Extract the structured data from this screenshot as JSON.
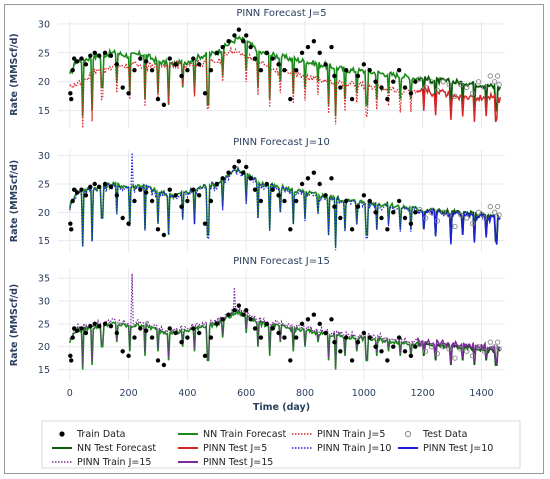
{
  "chart_data": [
    {
      "type": "line",
      "title": "PINN Forecast J=5",
      "ylabel": "Rate (MMScf/d)",
      "xlim": [
        -40,
        1480
      ],
      "ylim": [
        12,
        30.5
      ],
      "yticks": [
        15,
        20,
        25,
        30
      ],
      "grid": true,
      "pinn_train_name": "PINN Train J=5",
      "pinn_test_name": "PINN Test J=5",
      "pinn_color": "#d62728",
      "pinn_baseline": [
        [
          0,
          19
        ],
        [
          100,
          22
        ],
        [
          200,
          23
        ],
        [
          300,
          22.5
        ],
        [
          400,
          23
        ],
        [
          500,
          23.5
        ],
        [
          560,
          25.5
        ],
        [
          600,
          24.5
        ],
        [
          700,
          22
        ],
        [
          800,
          21
        ],
        [
          900,
          20
        ],
        [
          1000,
          19.5
        ],
        [
          1100,
          18.5
        ],
        [
          1200,
          18.5
        ],
        [
          1300,
          17.5
        ],
        [
          1400,
          17.5
        ],
        [
          1460,
          17
        ]
      ],
      "pinn_offset_from_nn": -2.5
    },
    {
      "type": "line",
      "title": "PINN Forecast J=10",
      "ylabel": "Rate (MMScf/d)",
      "xlim": [
        -40,
        1480
      ],
      "ylim": [
        13,
        31
      ],
      "yticks": [
        15,
        20,
        25,
        30
      ],
      "grid": true,
      "pinn_train_name": "PINN Train J=10",
      "pinn_test_name": "PINN Test J=10",
      "pinn_color": "#1f1fd6",
      "pinn_offset_from_nn": -0.3
    },
    {
      "type": "line",
      "title": "PINN Forecast J=15",
      "ylabel": "Rate (MMScf/d)",
      "xlabel": "Time (day)",
      "xlim": [
        -40,
        1480
      ],
      "ylim": [
        12.5,
        37
      ],
      "yticks": [
        15,
        20,
        25,
        30,
        35
      ],
      "xticks": [
        0,
        200,
        400,
        600,
        800,
        1000,
        1200,
        1400
      ],
      "grid": true,
      "pinn_train_name": "PINN Train J=15",
      "pinn_test_name": "PINN Test J=15",
      "pinn_color": "#7a2a9a",
      "pinn_offset_from_nn": 0.6
    }
  ],
  "shared_series": {
    "nn_baseline": [
      [
        0,
        21
      ],
      [
        20,
        23.5
      ],
      [
        60,
        24
      ],
      [
        100,
        24.5
      ],
      [
        150,
        25
      ],
      [
        200,
        24.5
      ],
      [
        250,
        24.8
      ],
      [
        300,
        23.5
      ],
      [
        350,
        23
      ],
      [
        400,
        23.5
      ],
      [
        450,
        24.5
      ],
      [
        500,
        25
      ],
      [
        540,
        26.5
      ],
      [
        570,
        27.5
      ],
      [
        600,
        27
      ],
      [
        650,
        25
      ],
      [
        700,
        24.5
      ],
      [
        750,
        24
      ],
      [
        800,
        23.5
      ],
      [
        850,
        23
      ],
      [
        900,
        22.5
      ],
      [
        950,
        22
      ],
      [
        1000,
        21.8
      ],
      [
        1050,
        21.5
      ],
      [
        1100,
        21.2
      ],
      [
        1150,
        20.8
      ],
      [
        1200,
        20.5
      ],
      [
        1250,
        20.2
      ],
      [
        1300,
        20
      ],
      [
        1350,
        19.8
      ],
      [
        1400,
        19.5
      ],
      [
        1460,
        19
      ]
    ],
    "train_end_day": 1180,
    "end_day": 1465,
    "train_points": [
      [
        2,
        18
      ],
      [
        5,
        17
      ],
      [
        10,
        22
      ],
      [
        15,
        24
      ],
      [
        25,
        23.5
      ],
      [
        40,
        24
      ],
      [
        55,
        23
      ],
      [
        70,
        24.5
      ],
      [
        85,
        25
      ],
      [
        100,
        24.5
      ],
      [
        120,
        25
      ],
      [
        140,
        24.5
      ],
      [
        160,
        23
      ],
      [
        180,
        19
      ],
      [
        200,
        18
      ],
      [
        220,
        22
      ],
      [
        240,
        24
      ],
      [
        260,
        23.5
      ],
      [
        280,
        22
      ],
      [
        300,
        17
      ],
      [
        320,
        16
      ],
      [
        340,
        24
      ],
      [
        360,
        23
      ],
      [
        380,
        21
      ],
      [
        400,
        22
      ],
      [
        420,
        24
      ],
      [
        440,
        23
      ],
      [
        460,
        18
      ],
      [
        480,
        22
      ],
      [
        500,
        25
      ],
      [
        520,
        26
      ],
      [
        540,
        27
      ],
      [
        560,
        28
      ],
      [
        575,
        29
      ],
      [
        590,
        27
      ],
      [
        600,
        28
      ],
      [
        615,
        26
      ],
      [
        630,
        24
      ],
      [
        650,
        22
      ],
      [
        670,
        25
      ],
      [
        690,
        24
      ],
      [
        710,
        23
      ],
      [
        730,
        22
      ],
      [
        750,
        17
      ],
      [
        770,
        22
      ],
      [
        790,
        25
      ],
      [
        810,
        26
      ],
      [
        830,
        27
      ],
      [
        850,
        25
      ],
      [
        870,
        23
      ],
      [
        890,
        26
      ],
      [
        900,
        21
      ],
      [
        920,
        19
      ],
      [
        940,
        22
      ],
      [
        960,
        17
      ],
      [
        980,
        21
      ],
      [
        1000,
        23
      ],
      [
        1020,
        22
      ],
      [
        1040,
        20
      ],
      [
        1060,
        19
      ],
      [
        1080,
        17
      ],
      [
        1100,
        20
      ],
      [
        1120,
        22
      ],
      [
        1140,
        19
      ],
      [
        1160,
        18
      ],
      [
        1175,
        20
      ]
    ],
    "test_points": [
      [
        1190,
        20.5
      ],
      [
        1210,
        19
      ],
      [
        1230,
        20
      ],
      [
        1250,
        18.5
      ],
      [
        1270,
        20
      ],
      [
        1290,
        19.5
      ],
      [
        1310,
        17.5
      ],
      [
        1330,
        19.5
      ],
      [
        1350,
        19
      ],
      [
        1370,
        18
      ],
      [
        1390,
        20
      ],
      [
        1410,
        19
      ],
      [
        1430,
        21
      ],
      [
        1445,
        20
      ],
      [
        1455,
        21
      ],
      [
        1460,
        19.5
      ]
    ],
    "drops": [
      [
        45,
        14
      ],
      [
        75,
        15
      ],
      [
        110,
        19
      ],
      [
        160,
        20
      ],
      [
        205,
        18
      ],
      [
        255,
        17
      ],
      [
        300,
        18
      ],
      [
        335,
        16
      ],
      [
        385,
        19
      ],
      [
        425,
        18
      ],
      [
        470,
        16
      ],
      [
        520,
        21
      ],
      [
        600,
        22
      ],
      [
        640,
        19
      ],
      [
        680,
        17
      ],
      [
        715,
        20
      ],
      [
        760,
        18
      ],
      [
        800,
        19
      ],
      [
        845,
        20
      ],
      [
        880,
        16
      ],
      [
        905,
        14
      ],
      [
        935,
        17
      ],
      [
        975,
        18
      ],
      [
        1010,
        16
      ],
      [
        1045,
        17
      ],
      [
        1085,
        18
      ],
      [
        1125,
        17
      ],
      [
        1160,
        17
      ],
      [
        1205,
        17
      ],
      [
        1245,
        16
      ],
      [
        1295,
        15
      ],
      [
        1335,
        16
      ],
      [
        1375,
        15
      ],
      [
        1415,
        16
      ],
      [
        1450,
        15
      ]
    ]
  },
  "x_axis": {
    "label": "Time (day)"
  },
  "legend": {
    "placement": "bottom",
    "items": [
      {
        "label": "Train Data",
        "style": "dot",
        "color": "#000000"
      },
      {
        "label": "NN Train Forecast",
        "style": "line",
        "color": "#1a8a1a"
      },
      {
        "label": "PINN Train J=5",
        "style": "dotted",
        "color": "#d62728"
      },
      {
        "label": "Test Data",
        "style": "circle",
        "color": "#888888"
      },
      {
        "label": "NN Test Forecast",
        "style": "line",
        "color": "#0a5a0a"
      },
      {
        "label": "PINN Test J=5",
        "style": "line",
        "color": "#d62728"
      },
      {
        "label": "PINN Train J=10",
        "style": "dotted",
        "color": "#1f1fd6"
      },
      {
        "label": "PINN Test J=10",
        "style": "line",
        "color": "#1f1fd6"
      },
      {
        "label": "PINN Train J=15",
        "style": "dotted",
        "color": "#7a2a9a"
      },
      {
        "label": "PINN Test J=15",
        "style": "line",
        "color": "#7a2a9a"
      }
    ]
  }
}
